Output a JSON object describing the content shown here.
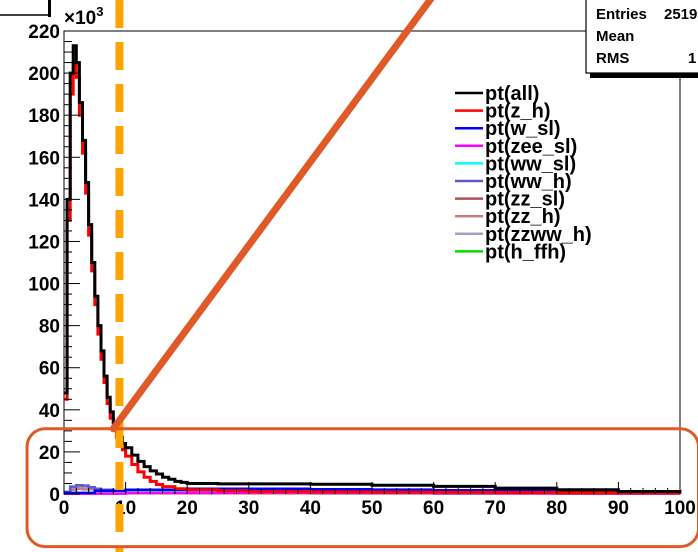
{
  "chart_data": {
    "type": "line",
    "title": "",
    "xlabel": "",
    "ylabel": "",
    "xlim": [
      0,
      100
    ],
    "ylim": [
      0,
      220000
    ],
    "y_multiplier_label": "×10",
    "y_multiplier_exponent": "3",
    "x_ticks": [
      "0",
      "10",
      "20",
      "30",
      "40",
      "50",
      "60",
      "70",
      "80",
      "90",
      "100"
    ],
    "y_ticks": [
      "0",
      "20",
      "40",
      "60",
      "80",
      "100",
      "120",
      "140",
      "160",
      "180",
      "200",
      "220"
    ],
    "grid": false,
    "legend_position": "upper-right",
    "colors": {
      "all": "#000000",
      "z_h": "#ff0000",
      "w_sl": "#0000ff",
      "zee_sl": "#ff00ff",
      "ww_sl": "#00ffff",
      "ww_h": "#5a5ad0",
      "zz_sl": "#b05050",
      "zz_h": "#c08080",
      "zzww_h": "#a0a0c0",
      "h_ffh": "#00e000",
      "cut_line": "#ffa500",
      "annotation": "#e05a28"
    },
    "series": [
      {
        "name": "pt(all)",
        "color_key": "all",
        "x": [
          0,
          0.5,
          1,
          1.5,
          2,
          2.5,
          3,
          3.5,
          4,
          4.5,
          5,
          5.5,
          6,
          6.5,
          7,
          7.5,
          8,
          8.5,
          9,
          9.5,
          10,
          11,
          12,
          13,
          14,
          15,
          16,
          17,
          18,
          19,
          20,
          25,
          30,
          40,
          50,
          60,
          70,
          80,
          90,
          100
        ],
        "y": [
          48000,
          140000,
          200000,
          213000,
          205000,
          186000,
          168000,
          148000,
          128000,
          110000,
          94000,
          80000,
          68000,
          56000,
          46000,
          39000,
          34000,
          30000,
          27000,
          24000,
          22000,
          18500,
          15500,
          13000,
          11000,
          9500,
          8000,
          7000,
          6000,
          5500,
          5000,
          4800,
          4800,
          4600,
          4200,
          3600,
          2800,
          2000,
          1200,
          600
        ]
      },
      {
        "name": "pt(z_h)",
        "color_key": "z_h",
        "x": [
          0,
          0.5,
          1,
          1.5,
          2,
          2.5,
          3,
          3.5,
          4,
          4.5,
          5,
          5.5,
          6,
          6.5,
          7,
          7.5,
          8,
          8.5,
          9,
          9.5,
          10,
          11,
          12,
          13,
          14,
          15,
          16,
          18,
          20,
          25,
          30,
          40,
          50,
          60,
          70,
          80,
          90,
          100
        ],
        "y": [
          45000,
          130000,
          190000,
          205000,
          198000,
          180000,
          162000,
          143000,
          123000,
          106000,
          90000,
          76000,
          64000,
          53000,
          43000,
          36000,
          31000,
          27000,
          24000,
          21000,
          18000,
          14000,
          10500,
          8000,
          6000,
          4500,
          3500,
          2500,
          2000,
          1500,
          1200,
          1000,
          900,
          800,
          700,
          600,
          500,
          400
        ]
      },
      {
        "name": "pt(w_sl)",
        "color_key": "w_sl",
        "x": [
          0,
          5,
          10,
          20,
          30,
          40,
          50,
          60,
          70,
          80,
          90,
          100
        ],
        "y": [
          500,
          1500,
          2000,
          2500,
          2500,
          2300,
          2100,
          1800,
          1500,
          1200,
          900,
          600
        ]
      },
      {
        "name": "pt(zee_sl)",
        "color_key": "zee_sl",
        "x": [
          0,
          10,
          20,
          30,
          40,
          50,
          60,
          70,
          80,
          90,
          100
        ],
        "y": [
          200,
          500,
          600,
          600,
          600,
          500,
          500,
          400,
          400,
          300,
          300
        ]
      },
      {
        "name": "pt(ww_sl)",
        "color_key": "ww_sl",
        "x": [
          0,
          5,
          10,
          20,
          30,
          40,
          50,
          60,
          70,
          80,
          90,
          100
        ],
        "y": [
          300,
          800,
          1200,
          1400,
          1400,
          1300,
          1200,
          1000,
          900,
          700,
          500,
          300
        ]
      },
      {
        "name": "pt(ww_h)",
        "color_key": "ww_h",
        "x": [
          0,
          1,
          2,
          3,
          4,
          5,
          6,
          8,
          10,
          15,
          20,
          40,
          60,
          80,
          100
        ],
        "y": [
          1000,
          3500,
          4200,
          4000,
          3200,
          2500,
          2000,
          1400,
          1000,
          700,
          600,
          500,
          400,
          300,
          200
        ]
      },
      {
        "name": "pt(zz_sl)",
        "color_key": "zz_sl",
        "x": [
          0,
          10,
          20,
          40,
          60,
          80,
          100
        ],
        "y": [
          200,
          400,
          400,
          400,
          300,
          200,
          100
        ]
      },
      {
        "name": "pt(zz_h)",
        "color_key": "zz_h",
        "x": [
          0,
          1,
          2,
          3,
          5,
          8,
          10,
          20,
          40,
          60,
          80,
          100
        ],
        "y": [
          500,
          2000,
          2500,
          2200,
          1500,
          900,
          600,
          400,
          300,
          200,
          150,
          100
        ]
      },
      {
        "name": "pt(zzww_h)",
        "color_key": "zzww_h",
        "x": [
          0,
          1,
          2,
          3,
          5,
          8,
          10,
          20,
          40,
          60,
          80,
          100
        ],
        "y": [
          600,
          2500,
          3000,
          2800,
          2000,
          1200,
          800,
          500,
          400,
          300,
          200,
          100
        ]
      },
      {
        "name": "pt(h_ffh)",
        "color_key": "h_ffh",
        "x": [
          0,
          5,
          10,
          20,
          30,
          40,
          50,
          60,
          70,
          80,
          90,
          100
        ],
        "y": [
          300,
          800,
          1000,
          1100,
          1100,
          1000,
          900,
          800,
          700,
          600,
          500,
          400
        ]
      }
    ],
    "annotations": [
      {
        "type": "vertical-dashed-line",
        "x": 9,
        "color_key": "cut_line"
      },
      {
        "type": "rounded-rectangle",
        "x": [
          -6,
          103
        ],
        "y": [
          -25000,
          31000
        ],
        "color_key": "annotation"
      },
      {
        "type": "line",
        "x": [
          8,
          60
        ],
        "y": [
          31000,
          237000
        ],
        "color_key": "annotation"
      }
    ],
    "stats_box": {
      "rows": [
        {
          "label": "Entries",
          "value": "2519"
        },
        {
          "label": "Mean",
          "value": ""
        },
        {
          "label": "RMS",
          "value": "1"
        }
      ]
    }
  }
}
